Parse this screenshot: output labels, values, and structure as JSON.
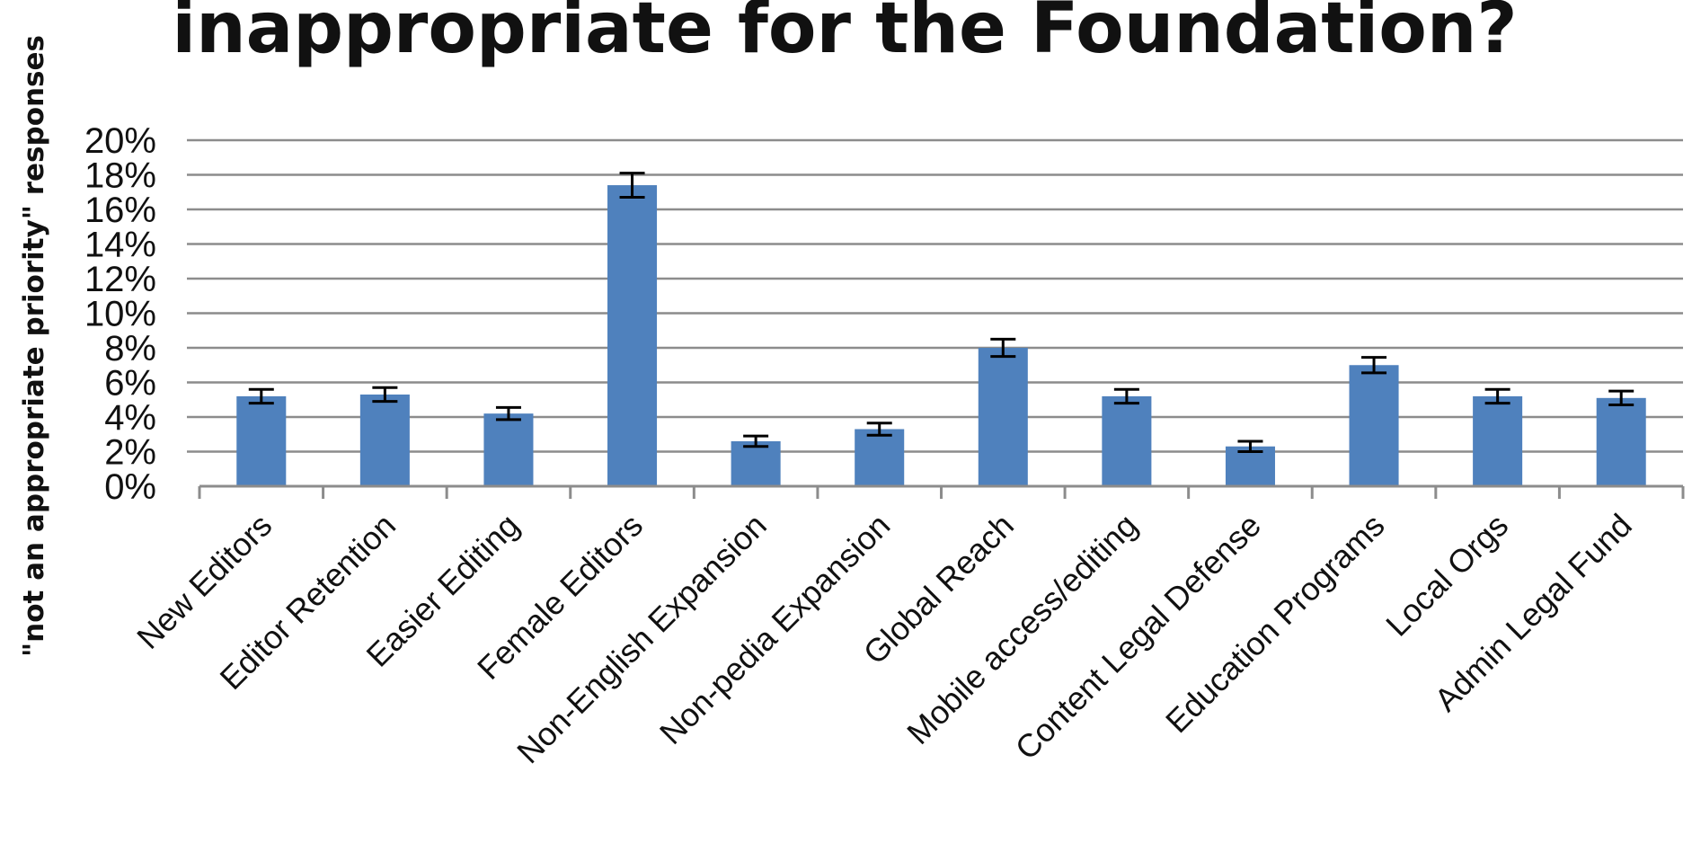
{
  "chart_data": {
    "type": "bar",
    "title": "inappropriate for the Foundation?",
    "ylabel": "\"not an appropriate priority\" responses",
    "xlabel": "",
    "categories": [
      "New Editors",
      "Editor Retention",
      "Easier Editing",
      "Female Editors",
      "Non-English Expansion",
      "Non-pedia Expansion",
      "Global Reach",
      "Mobile access/editing",
      "Content Legal Defense",
      "Education Programs",
      "Local Orgs",
      "Admin Legal Fund"
    ],
    "values": [
      5.2,
      5.3,
      4.2,
      17.4,
      2.6,
      3.3,
      8.0,
      5.2,
      2.3,
      7.0,
      5.2,
      5.1
    ],
    "error": [
      0.4,
      0.4,
      0.35,
      0.7,
      0.3,
      0.35,
      0.5,
      0.4,
      0.3,
      0.45,
      0.4,
      0.4
    ],
    "unit": "%",
    "ylim": [
      0,
      20
    ],
    "yticks": [
      "0%",
      "2%",
      "4%",
      "6%",
      "8%",
      "10%",
      "12%",
      "14%",
      "16%",
      "18%",
      "20%"
    ],
    "grid": true,
    "legend": "none",
    "colors": {
      "bar": "#4f81bd",
      "grid": "#8c8c8c",
      "error": "#000000",
      "axis": "#8c8c8c"
    }
  }
}
